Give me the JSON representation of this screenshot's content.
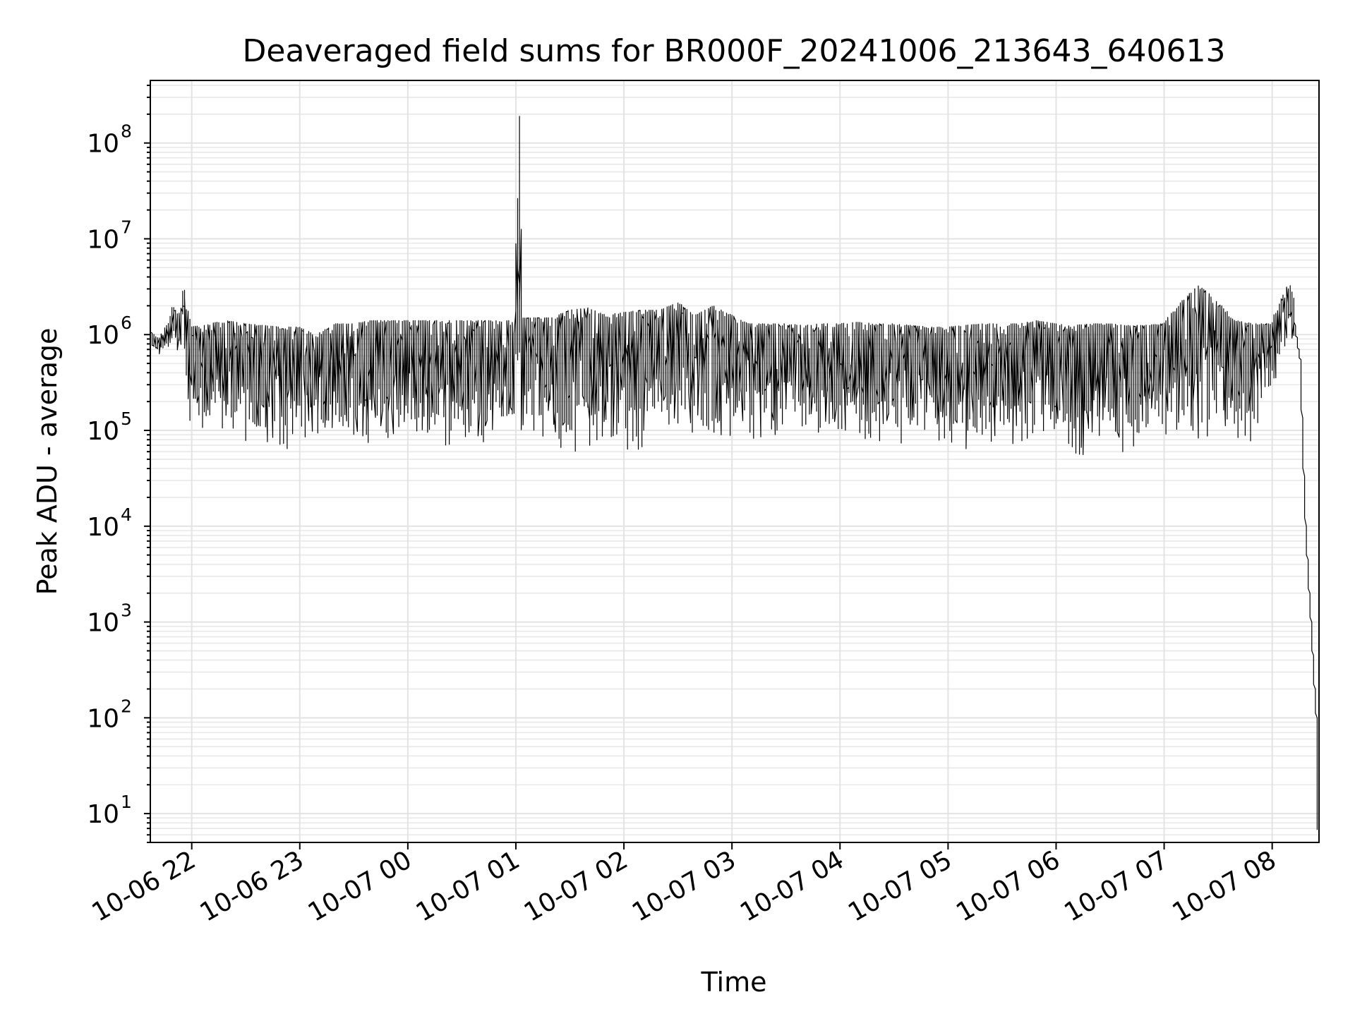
{
  "chart_data": {
    "type": "line",
    "title": "Deaveraged field sums for BR000F_20241006_213643_640613",
    "xlabel": "Time",
    "ylabel": "Peak ADU - average",
    "yscale": "log",
    "grid": "on (major and minor)",
    "legend": "none",
    "x_range": [
      "2024-10-06 21:37",
      "2024-10-07 08:26"
    ],
    "y_range": [
      5,
      450000000
    ],
    "x_ticks": [
      {
        "time": "2024-10-06 22:00",
        "label": "10-06 22"
      },
      {
        "time": "2024-10-06 23:00",
        "label": "10-06 23"
      },
      {
        "time": "2024-10-07 00:00",
        "label": "10-07 00"
      },
      {
        "time": "2024-10-07 01:00",
        "label": "10-07 01"
      },
      {
        "time": "2024-10-07 02:00",
        "label": "10-07 02"
      },
      {
        "time": "2024-10-07 03:00",
        "label": "10-07 03"
      },
      {
        "time": "2024-10-07 04:00",
        "label": "10-07 04"
      },
      {
        "time": "2024-10-07 05:00",
        "label": "10-07 05"
      },
      {
        "time": "2024-10-07 06:00",
        "label": "10-07 06"
      },
      {
        "time": "2024-10-07 07:00",
        "label": "10-07 07"
      },
      {
        "time": "2024-10-07 08:00",
        "label": "10-07 08"
      }
    ],
    "y_ticks": [
      {
        "value": 10,
        "base": "10",
        "exp": "1"
      },
      {
        "value": 100,
        "base": "10",
        "exp": "2"
      },
      {
        "value": 1000,
        "base": "10",
        "exp": "3"
      },
      {
        "value": 10000,
        "base": "10",
        "exp": "4"
      },
      {
        "value": 100000,
        "base": "10",
        "exp": "5"
      },
      {
        "value": 1000000,
        "base": "10",
        "exp": "6"
      },
      {
        "value": 10000000,
        "base": "10",
        "exp": "7"
      },
      {
        "value": 100000000,
        "base": "10",
        "exp": "8"
      }
    ],
    "series": [
      {
        "color": "#000000",
        "x": [
          "2024-10-06 21:37",
          "2024-10-06 21:42",
          "2024-10-06 21:47",
          "2024-10-06 21:50",
          "2024-10-06 21:53",
          "2024-10-06 21:56",
          "2024-10-06 22:00",
          "2024-10-06 22:10",
          "2024-10-06 22:20",
          "2024-10-06 22:30",
          "2024-10-06 22:40",
          "2024-10-06 22:50",
          "2024-10-06 23:00",
          "2024-10-06 23:10",
          "2024-10-06 23:20",
          "2024-10-06 23:30",
          "2024-10-06 23:40",
          "2024-10-06 23:50",
          "2024-10-07 00:00",
          "2024-10-07 00:10",
          "2024-10-07 00:20",
          "2024-10-07 00:30",
          "2024-10-07 00:40",
          "2024-10-07 00:50",
          "2024-10-07 01:00",
          "2024-10-07 01:02",
          "2024-10-07 01:04",
          "2024-10-07 01:10",
          "2024-10-07 01:20",
          "2024-10-07 01:30",
          "2024-10-07 01:40",
          "2024-10-07 01:50",
          "2024-10-07 02:00",
          "2024-10-07 02:10",
          "2024-10-07 02:20",
          "2024-10-07 02:30",
          "2024-10-07 02:40",
          "2024-10-07 02:50",
          "2024-10-07 03:00",
          "2024-10-07 03:10",
          "2024-10-07 03:20",
          "2024-10-07 03:30",
          "2024-10-07 03:40",
          "2024-10-07 03:50",
          "2024-10-07 04:00",
          "2024-10-07 04:10",
          "2024-10-07 04:20",
          "2024-10-07 04:30",
          "2024-10-07 04:40",
          "2024-10-07 04:50",
          "2024-10-07 05:00",
          "2024-10-07 05:10",
          "2024-10-07 05:20",
          "2024-10-07 05:30",
          "2024-10-07 05:40",
          "2024-10-07 05:50",
          "2024-10-07 06:00",
          "2024-10-07 06:10",
          "2024-10-07 06:20",
          "2024-10-07 06:30",
          "2024-10-07 06:40",
          "2024-10-07 06:50",
          "2024-10-07 07:00",
          "2024-10-07 07:10",
          "2024-10-07 07:20",
          "2024-10-07 07:30",
          "2024-10-07 07:40",
          "2024-10-07 07:50",
          "2024-10-07 08:00",
          "2024-10-07 08:05",
          "2024-10-07 08:10",
          "2024-10-07 08:13",
          "2024-10-07 08:16",
          "2024-10-07 08:19",
          "2024-10-07 08:22",
          "2024-10-07 08:25",
          "2024-10-07 08:26"
        ],
        "upper": [
          1100000,
          900000,
          1300000,
          2000000,
          1600000,
          3100000,
          1200000,
          1300000,
          1400000,
          1300000,
          1250000,
          1200000,
          1200000,
          1000000,
          1300000,
          1300000,
          1400000,
          1400000,
          1400000,
          1400000,
          1400000,
          1400000,
          1400000,
          1400000,
          1400000,
          190000000,
          1500000,
          1500000,
          1500000,
          1800000,
          1900000,
          1600000,
          1700000,
          1800000,
          1800000,
          2200000,
          1600000,
          2000000,
          1600000,
          1300000,
          1300000,
          1300000,
          1250000,
          1300000,
          1300000,
          1350000,
          1300000,
          1300000,
          1250000,
          1200000,
          1200000,
          1250000,
          1300000,
          1300000,
          1300000,
          1400000,
          1300000,
          1250000,
          1300000,
          1300000,
          1250000,
          1250000,
          1300000,
          2200000,
          3300000,
          2200000,
          1400000,
          1300000,
          1300000,
          2300000,
          3400000,
          2200000,
          1000000,
          10000,
          1000,
          100,
          5
        ],
        "lower": [
          700000,
          600000,
          650000,
          700000,
          600000,
          500000,
          100000,
          90000,
          80000,
          70000,
          60000,
          55000,
          60000,
          55000,
          70000,
          70000,
          60000,
          60000,
          70000,
          70000,
          60000,
          60000,
          60000,
          70000,
          80000,
          150000,
          90000,
          70000,
          50000,
          60000,
          60000,
          60000,
          60000,
          45000,
          80000,
          90000,
          80000,
          70000,
          70000,
          70000,
          60000,
          70000,
          70000,
          70000,
          70000,
          70000,
          65000,
          65000,
          70000,
          75000,
          60000,
          55000,
          60000,
          60000,
          55000,
          60000,
          55000,
          40000,
          55000,
          55000,
          50000,
          60000,
          60000,
          70000,
          55000,
          50000,
          50000,
          60000,
          250000,
          500000,
          900000,
          700000,
          300000,
          10000,
          1000,
          100,
          5
        ]
      }
    ]
  }
}
